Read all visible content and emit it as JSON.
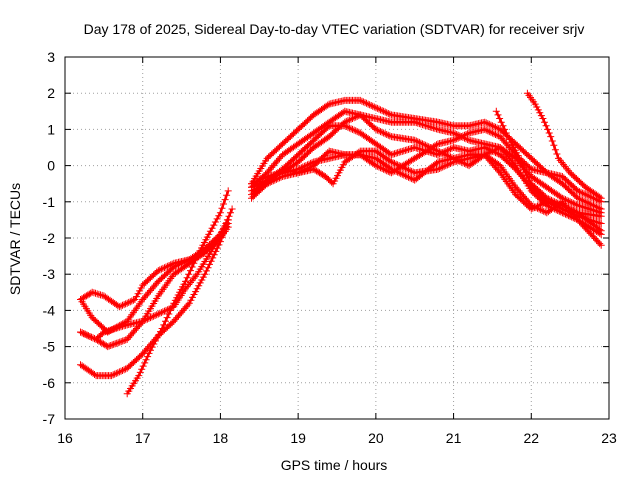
{
  "chart_data": {
    "type": "scatter",
    "title": "Day 178 of 2025, Sidereal Day-to-day VTEC variation (SDTVAR) for receiver srjv",
    "xlabel": "GPS time / hours",
    "ylabel": "SDTVAR / TECUs",
    "xlim": [
      16,
      23
    ],
    "ylim": [
      -7,
      3
    ],
    "xticks": [
      "16",
      "17",
      "18",
      "19",
      "20",
      "21",
      "22",
      "23"
    ],
    "yticks": [
      "3",
      "2",
      "1",
      "0",
      "-1",
      "-2",
      "-3",
      "-4",
      "-5",
      "-6",
      "-7"
    ],
    "grid": true,
    "marker": "plus",
    "color": "#ff0000",
    "series": [
      {
        "name": "track-1",
        "x": [
          16.2,
          16.35,
          16.5,
          16.7,
          16.9,
          17.0,
          17.2,
          17.4,
          17.6,
          17.8,
          18.0,
          18.1
        ],
        "y": [
          -3.7,
          -3.5,
          -3.6,
          -3.9,
          -3.7,
          -3.3,
          -2.9,
          -2.7,
          -2.6,
          -2.4,
          -2.0,
          -1.6
        ]
      },
      {
        "name": "track-2",
        "x": [
          16.2,
          16.35,
          16.55,
          16.8,
          17.0,
          17.2,
          17.4,
          17.6,
          17.8,
          18.0,
          18.1
        ],
        "y": [
          -3.7,
          -4.2,
          -4.6,
          -4.3,
          -3.7,
          -3.2,
          -2.8,
          -2.6,
          -2.3,
          -1.9,
          -1.5
        ]
      },
      {
        "name": "track-3",
        "x": [
          16.2,
          16.4,
          16.55,
          16.8,
          17.0,
          17.2,
          17.4,
          17.6,
          17.8,
          18.0,
          18.1
        ],
        "y": [
          -4.6,
          -4.8,
          -5.0,
          -4.8,
          -4.3,
          -3.6,
          -3.0,
          -2.7,
          -2.4,
          -2.0,
          -1.7
        ]
      },
      {
        "name": "track-4",
        "x": [
          16.2,
          16.4,
          16.5,
          16.8,
          17.0,
          17.2,
          17.4,
          17.55,
          17.7,
          17.9,
          18.05,
          18.15
        ],
        "y": [
          -4.6,
          -4.8,
          -4.6,
          -4.4,
          -4.3,
          -4.1,
          -3.9,
          -3.4,
          -3.0,
          -2.3,
          -1.7,
          -1.2
        ]
      },
      {
        "name": "track-5",
        "x": [
          16.2,
          16.4,
          16.6,
          16.8,
          17.0,
          17.2,
          17.4,
          17.6,
          17.8,
          18.0,
          18.1
        ],
        "y": [
          -5.5,
          -5.8,
          -5.8,
          -5.6,
          -5.2,
          -4.7,
          -4.3,
          -3.8,
          -3.0,
          -2.1,
          -1.5
        ]
      },
      {
        "name": "track-6",
        "x": [
          16.8,
          16.95,
          17.1,
          17.25,
          17.4,
          17.55,
          17.7,
          17.85,
          18.0,
          18.1
        ],
        "y": [
          -6.3,
          -5.8,
          -5.1,
          -4.5,
          -3.8,
          -3.2,
          -2.5,
          -1.9,
          -1.3,
          -0.7
        ]
      },
      {
        "name": "track-7",
        "x": [
          18.4,
          18.6,
          18.8,
          19.0,
          19.2,
          19.4,
          19.6,
          19.8,
          20.0,
          20.2,
          20.5,
          20.8,
          21.0,
          21.2,
          21.4,
          21.6,
          21.8,
          22.0,
          22.2,
          22.4,
          22.6,
          22.9
        ],
        "y": [
          -0.5,
          -0.3,
          -0.2,
          0.1,
          0.5,
          0.8,
          1.2,
          1.4,
          1.3,
          1.2,
          1.2,
          1.0,
          0.9,
          0.7,
          0.6,
          0.5,
          0.2,
          -0.3,
          -0.6,
          -0.9,
          -1.1,
          -1.3
        ]
      },
      {
        "name": "track-8",
        "x": [
          18.4,
          18.6,
          18.8,
          19.0,
          19.2,
          19.4,
          19.6,
          19.8,
          20.0,
          20.2,
          20.5,
          20.8,
          21.0,
          21.2,
          21.4,
          21.6,
          21.8,
          22.0,
          22.2,
          22.4,
          22.6,
          22.9
        ],
        "y": [
          -0.5,
          0.2,
          0.6,
          1.0,
          1.4,
          1.7,
          1.8,
          1.8,
          1.6,
          1.4,
          1.3,
          1.2,
          1.1,
          1.1,
          1.2,
          1.0,
          0.6,
          0.2,
          -0.2,
          -0.5,
          -0.9,
          -1.2
        ]
      },
      {
        "name": "track-9",
        "x": [
          18.4,
          18.6,
          18.8,
          19.0,
          19.2,
          19.4,
          19.6,
          19.8,
          20.0,
          20.2,
          20.5,
          20.8,
          21.0,
          21.2,
          21.4,
          21.6,
          21.8,
          22.0,
          22.2,
          22.4,
          22.6,
          22.9
        ],
        "y": [
          -0.9,
          -0.5,
          -0.1,
          0.3,
          0.7,
          1.1,
          1.1,
          0.9,
          0.6,
          0.3,
          0.5,
          0.3,
          0.5,
          0.4,
          0.5,
          0.3,
          -0.1,
          -0.6,
          -1.0,
          -1.2,
          -1.4,
          -1.6
        ]
      },
      {
        "name": "track-10",
        "x": [
          18.4,
          18.6,
          18.8,
          19.0,
          19.2,
          19.4,
          19.6,
          19.8,
          20.0,
          20.2,
          20.5,
          20.8,
          21.0,
          21.2,
          21.4,
          21.6,
          21.8,
          22.0,
          22.2,
          22.4,
          22.6,
          22.9
        ],
        "y": [
          -0.6,
          -0.2,
          0.3,
          0.6,
          0.9,
          1.2,
          1.5,
          1.4,
          1.0,
          0.8,
          0.7,
          0.4,
          0.2,
          0.0,
          0.3,
          0.5,
          0.0,
          -0.7,
          -1.1,
          -1.3,
          -1.5,
          -1.9
        ]
      },
      {
        "name": "track-11",
        "x": [
          18.4,
          18.6,
          18.8,
          19.0,
          19.2,
          19.4,
          19.6,
          19.8,
          20.0,
          20.2,
          20.5,
          20.8,
          21.0,
          21.2,
          21.4,
          21.6,
          21.8,
          22.0,
          22.2,
          22.4,
          22.6,
          22.9
        ],
        "y": [
          -0.8,
          -0.4,
          -0.1,
          -0.2,
          0.0,
          0.4,
          0.3,
          0.3,
          0.0,
          -0.2,
          0.2,
          0.6,
          0.7,
          0.9,
          1.0,
          0.8,
          0.3,
          -0.5,
          -0.9,
          -1.1,
          -1.3,
          -1.8
        ]
      },
      {
        "name": "track-12",
        "x": [
          18.4,
          18.6,
          18.8,
          19.0,
          19.2,
          19.4,
          19.6,
          19.8,
          20.0,
          20.2,
          20.5,
          20.8,
          21.0,
          21.2,
          21.4,
          21.6,
          21.8,
          22.0,
          22.2,
          22.4,
          22.6,
          22.9
        ],
        "y": [
          -0.6,
          -0.4,
          -0.2,
          -0.1,
          0.1,
          0.2,
          0.3,
          0.3,
          0.2,
          -0.1,
          -0.4,
          0.1,
          0.2,
          0.3,
          0.3,
          0.0,
          -0.6,
          -1.1,
          -1.3,
          -1.0,
          -1.5,
          -2.2
        ]
      },
      {
        "name": "track-13",
        "x": [
          18.4,
          18.6,
          18.8,
          19.0,
          19.2,
          19.35,
          19.45,
          19.6,
          19.8,
          20.0,
          20.2,
          20.5,
          20.8,
          21.0,
          21.2,
          21.4,
          21.6,
          21.8,
          22.0,
          22.2,
          22.4,
          22.6,
          22.9
        ],
        "y": [
          -0.7,
          -0.5,
          -0.3,
          -0.2,
          -0.1,
          -0.3,
          -0.5,
          0.1,
          0.4,
          0.4,
          0.1,
          -0.2,
          -0.1,
          0.1,
          0.2,
          0.3,
          -0.2,
          -0.8,
          -1.2,
          -1.0,
          -1.1,
          -1.3,
          -1.4
        ]
      },
      {
        "name": "track-14",
        "x": [
          21.55,
          21.7,
          21.85,
          22.0,
          22.2,
          22.4,
          22.6,
          22.9
        ],
        "y": [
          1.5,
          0.8,
          0.2,
          -0.1,
          -0.2,
          -0.3,
          -0.7,
          -1.0
        ]
      },
      {
        "name": "track-15",
        "x": [
          21.95,
          22.05,
          22.15,
          22.25,
          22.35,
          22.5,
          22.7,
          22.9
        ],
        "y": [
          2.0,
          1.7,
          1.3,
          0.8,
          0.2,
          -0.2,
          -0.6,
          -0.9
        ]
      }
    ]
  }
}
